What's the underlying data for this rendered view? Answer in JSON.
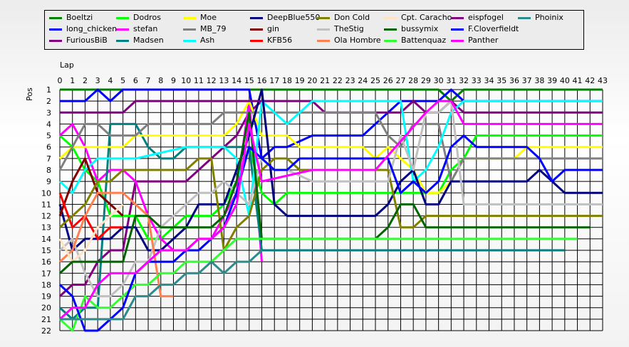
{
  "chart_data": {
    "type": "line",
    "xlabel": "Lap",
    "ylabel": "Pos",
    "xlim": [
      0,
      43
    ],
    "ylim": [
      1,
      22
    ],
    "x_ticks": [
      0,
      1,
      2,
      3,
      4,
      5,
      6,
      7,
      8,
      9,
      10,
      11,
      12,
      13,
      14,
      15,
      16,
      17,
      18,
      19,
      20,
      21,
      22,
      23,
      24,
      25,
      26,
      27,
      28,
      29,
      30,
      31,
      32,
      33,
      34,
      35,
      36,
      37,
      38,
      39,
      40,
      41,
      42,
      43
    ],
    "y_ticks": [
      1,
      2,
      3,
      4,
      5,
      6,
      7,
      8,
      9,
      10,
      11,
      12,
      13,
      14,
      15,
      16,
      17,
      18,
      19,
      20,
      21,
      22
    ],
    "grid": true,
    "legend_position": "top",
    "series": [
      {
        "name": "Boeltzi",
        "color": "#008000",
        "x": [
          0,
          1,
          2,
          3,
          4,
          5,
          10,
          15,
          16,
          20,
          25,
          30,
          31,
          32,
          43
        ],
        "y": [
          1,
          1,
          1,
          1,
          1,
          1,
          1,
          1,
          1,
          1,
          1,
          1,
          2,
          1,
          1
        ]
      },
      {
        "name": "long_chicken",
        "color": "#0000ff",
        "x": [
          0,
          1,
          2,
          3,
          4,
          5,
          6,
          7,
          8,
          10,
          12,
          14,
          15,
          16,
          17,
          18,
          20,
          24,
          25,
          26,
          27,
          28,
          29,
          30,
          31,
          32,
          33,
          34,
          35,
          36,
          37,
          38,
          39,
          40,
          41,
          43
        ],
        "y": [
          2,
          2,
          2,
          1,
          2,
          1,
          1,
          1,
          1,
          1,
          1,
          1,
          1,
          7,
          6,
          6,
          5,
          5,
          4,
          3,
          2,
          2,
          2,
          2,
          1,
          2,
          2,
          2,
          2,
          2,
          2,
          2,
          2,
          2,
          2,
          2
        ]
      },
      {
        "name": "FuriousBiB",
        "color": "#800080",
        "x": [
          0,
          1,
          2,
          3,
          4,
          5,
          6,
          10,
          14,
          15,
          16,
          17,
          18,
          19,
          20,
          21,
          22,
          25,
          26,
          27,
          28,
          29,
          30,
          31,
          32,
          33,
          43
        ],
        "y": [
          19,
          18,
          18,
          16,
          15,
          15,
          9,
          9,
          5,
          3,
          2,
          2,
          2,
          2,
          2,
          3,
          3,
          3,
          3,
          3,
          2,
          3,
          3,
          2,
          3,
          3,
          3
        ]
      },
      {
        "name": "Dodros",
        "color": "#00ff00",
        "x": [
          0,
          1,
          2,
          3,
          4,
          5,
          6,
          7,
          8,
          9,
          10,
          11,
          12,
          13,
          14,
          15,
          16,
          17,
          18,
          19,
          20,
          30,
          31,
          32,
          33,
          43
        ],
        "y": [
          5,
          6,
          8,
          9,
          12,
          12,
          12,
          14,
          14,
          13,
          12,
          12,
          12,
          11,
          9,
          6,
          10,
          11,
          10,
          10,
          10,
          10,
          8,
          7,
          5,
          5
        ]
      },
      {
        "name": "stefan",
        "color": "#ff00ff",
        "x": [
          0,
          1,
          2,
          3,
          4,
          5,
          6,
          7,
          8,
          9,
          10,
          11,
          12,
          13,
          14,
          15,
          16
        ],
        "y": [
          5,
          4,
          6,
          9,
          8,
          8,
          9,
          12,
          14,
          15,
          15,
          14,
          14,
          12,
          10,
          2,
          16
        ]
      },
      {
        "name": "Madsen",
        "color": "#008080",
        "x": [
          0,
          1,
          2,
          3,
          4,
          5,
          6,
          7,
          8,
          9,
          10,
          11,
          12,
          13,
          14,
          15,
          16,
          17,
          20,
          25,
          30,
          35,
          40
        ],
        "y": [
          20,
          21,
          20,
          20,
          4,
          4,
          4,
          6,
          7,
          7,
          6,
          6,
          6,
          6,
          6,
          6,
          15,
          15,
          15,
          15,
          15,
          15,
          15
        ]
      },
      {
        "name": "Moe",
        "color": "#ffff00",
        "x": [
          0,
          1,
          2,
          3,
          4,
          5,
          6,
          7,
          8,
          9,
          10,
          11,
          12,
          13,
          14,
          15,
          16,
          17,
          18,
          19,
          20,
          21,
          24,
          25,
          26,
          27,
          28,
          29,
          30,
          31,
          32,
          33,
          34,
          35,
          36,
          37,
          38,
          43
        ],
        "y": [
          7,
          6,
          6,
          6,
          6,
          6,
          5,
          5,
          5,
          5,
          5,
          5,
          5,
          5,
          4,
          2,
          5,
          5,
          5,
          6,
          6,
          6,
          6,
          7,
          6,
          7,
          8,
          10,
          10,
          9,
          7,
          7,
          7,
          7,
          7,
          6,
          6,
          6
        ]
      },
      {
        "name": "MB_79",
        "color": "#808080",
        "x": [
          0,
          1,
          2,
          3,
          4,
          5,
          6,
          7,
          12,
          13,
          14,
          15,
          16,
          17,
          20,
          21,
          25,
          26,
          27,
          28,
          29,
          30,
          31,
          32,
          33,
          43
        ],
        "y": [
          8,
          6,
          4,
          4,
          5,
          5,
          5,
          4,
          4,
          3,
          3,
          3,
          3,
          3,
          3,
          3,
          3,
          5,
          6,
          4,
          4,
          4,
          9,
          7,
          7,
          7
        ]
      },
      {
        "name": "Ash",
        "color": "#00ffff",
        "x": [
          0,
          1,
          2,
          3,
          4,
          5,
          6,
          10,
          13,
          14,
          15,
          16,
          17,
          18,
          19,
          20,
          25,
          26,
          27,
          28,
          29,
          30,
          31,
          32,
          43
        ],
        "y": [
          9,
          10,
          8,
          7,
          7,
          7,
          7,
          6,
          6,
          7,
          12,
          2,
          3,
          4,
          3,
          2,
          2,
          2,
          2,
          9,
          8,
          6,
          3,
          2,
          2
        ]
      },
      {
        "name": "DeepBlue550",
        "color": "#000080",
        "x": [
          0,
          1,
          2,
          3,
          4,
          5,
          6,
          7,
          8,
          9,
          10,
          11,
          12,
          13,
          14,
          15,
          16,
          17,
          18,
          19,
          20,
          25,
          26,
          27,
          28,
          29,
          30,
          31,
          32,
          33,
          37,
          38,
          39,
          40,
          43
        ],
        "y": [
          11,
          15,
          14,
          14,
          14,
          13,
          13,
          15,
          15,
          14,
          13,
          11,
          11,
          11,
          8,
          5,
          1,
          11,
          12,
          12,
          12,
          12,
          11,
          9,
          8,
          11,
          11,
          9,
          9,
          9,
          9,
          8,
          9,
          10,
          10
        ]
      },
      {
        "name": "gin",
        "color": "#800000",
        "x": [
          0,
          1,
          2,
          3,
          4,
          5
        ],
        "y": [
          12,
          9,
          7,
          10,
          11,
          12
        ]
      },
      {
        "name": "KFB56",
        "color": "#ff0000",
        "x": [
          0,
          1,
          2,
          3,
          4,
          5
        ],
        "y": [
          10,
          13,
          12,
          14,
          13,
          13
        ]
      },
      {
        "name": "Don Cold",
        "color": "#808000",
        "x": [
          0,
          1,
          2,
          3,
          4,
          5,
          6,
          7,
          8,
          10,
          11,
          12,
          13,
          14,
          15,
          16,
          17,
          18,
          19,
          20,
          25,
          26,
          27,
          28,
          29,
          30,
          32,
          43
        ],
        "y": [
          13,
          12,
          11,
          9,
          9,
          8,
          8,
          8,
          8,
          8,
          7,
          7,
          15,
          13,
          12,
          8,
          7,
          7,
          8,
          8,
          8,
          8,
          13,
          13,
          12,
          12,
          12,
          12
        ]
      },
      {
        "name": "TheStig",
        "color": "#c0c0c0",
        "x": [
          0,
          1,
          2,
          3,
          4,
          5,
          6,
          7,
          8,
          9,
          10,
          11,
          12,
          13,
          14,
          15,
          16,
          17,
          18,
          20,
          21,
          25,
          26,
          27,
          28,
          29,
          30,
          31,
          32,
          33,
          43
        ],
        "y": [
          15,
          14,
          17,
          19,
          19,
          18,
          16,
          16,
          13,
          12,
          11,
          10,
          10,
          9,
          10,
          11,
          7,
          8,
          8,
          9,
          9,
          9,
          9,
          5,
          8,
          3,
          3,
          2,
          11,
          11,
          11
        ]
      },
      {
        "name": "Ola Hombre",
        "color": "#ff7f50",
        "x": [
          0,
          1,
          2,
          3,
          4,
          5,
          6,
          7,
          8,
          9
        ],
        "y": [
          16,
          15,
          12,
          10,
          10,
          10,
          11,
          12,
          19,
          19
        ]
      },
      {
        "name": "Cpt. Caracho",
        "color": "#ffe4c4",
        "x": [
          0,
          1,
          2,
          3,
          4,
          5
        ],
        "y": [
          14,
          16,
          15,
          13,
          12,
          11
        ]
      },
      {
        "name": "bussymix",
        "color": "#006400",
        "x": [
          0,
          1,
          2,
          3,
          4,
          5,
          6,
          7,
          8,
          9,
          10,
          11,
          12,
          13,
          14,
          15,
          16,
          17,
          20,
          25,
          26,
          27,
          28,
          29,
          30,
          32,
          42
        ],
        "y": [
          17,
          16,
          16,
          16,
          16,
          16,
          12,
          12,
          13,
          13,
          13,
          13,
          13,
          12,
          9,
          3,
          14,
          14,
          14,
          14,
          13,
          11,
          11,
          13,
          13,
          13,
          13
        ]
      },
      {
        "name": "Battenquaz",
        "color": "#32ff32",
        "x": [
          0,
          1,
          2,
          3,
          4,
          5,
          6,
          7,
          8,
          9,
          10,
          11,
          12,
          13,
          14,
          15,
          16,
          17,
          20,
          25,
          30,
          35,
          41
        ],
        "y": [
          21,
          22,
          19,
          20,
          20,
          19,
          18,
          18,
          17,
          17,
          16,
          16,
          16,
          15,
          14,
          14,
          14,
          14,
          14,
          14,
          14,
          14,
          14
        ]
      },
      {
        "name": "eispfogel",
        "color": "#800080",
        "x": [
          0,
          1,
          2,
          3,
          4,
          5,
          6,
          7,
          8,
          9,
          10,
          11,
          12,
          13,
          14,
          15,
          16
        ],
        "y": [
          3,
          3,
          3,
          3,
          3,
          3,
          2,
          2,
          2,
          2,
          2,
          2,
          2,
          2,
          2,
          2,
          2
        ]
      },
      {
        "name": "F.Cloverfieldt",
        "color": "#0000ff",
        "x": [
          0,
          1,
          2,
          3,
          4,
          5,
          6,
          7,
          8,
          9,
          10,
          11,
          12,
          13,
          14,
          15,
          16,
          17,
          18,
          19,
          20,
          25,
          26,
          27,
          28,
          29,
          30,
          31,
          32,
          33,
          37,
          38,
          39,
          40,
          41,
          43
        ],
        "y": [
          18,
          19,
          22,
          22,
          21,
          20,
          17,
          16,
          16,
          16,
          15,
          15,
          14,
          13,
          10,
          6,
          7,
          8,
          8,
          7,
          7,
          7,
          7,
          10,
          9,
          10,
          9,
          6,
          5,
          6,
          6,
          7,
          9,
          8,
          8,
          8
        ]
      },
      {
        "name": "Panther",
        "color": "#ff00ff",
        "x": [
          0,
          1,
          2,
          3,
          4,
          5,
          6,
          7,
          8,
          9,
          10,
          11,
          12,
          13,
          14,
          15,
          16,
          20,
          25,
          29,
          30,
          31,
          32,
          43
        ],
        "y": [
          21,
          20,
          20,
          18,
          17,
          17,
          17,
          16,
          15,
          15,
          15,
          14,
          14,
          13,
          11,
          4,
          9,
          8,
          8,
          3,
          2,
          2,
          4,
          4
        ]
      },
      {
        "name": "Phoinix",
        "color": "#2e8b8b",
        "x": [
          0,
          1,
          2,
          3,
          4,
          5,
          6,
          7,
          8,
          9,
          10,
          11,
          12,
          13,
          14,
          15,
          16
        ],
        "y": [
          21,
          21,
          21,
          21,
          21,
          21,
          19,
          19,
          18,
          18,
          17,
          17,
          16,
          17,
          16,
          16,
          15
        ]
      }
    ]
  }
}
